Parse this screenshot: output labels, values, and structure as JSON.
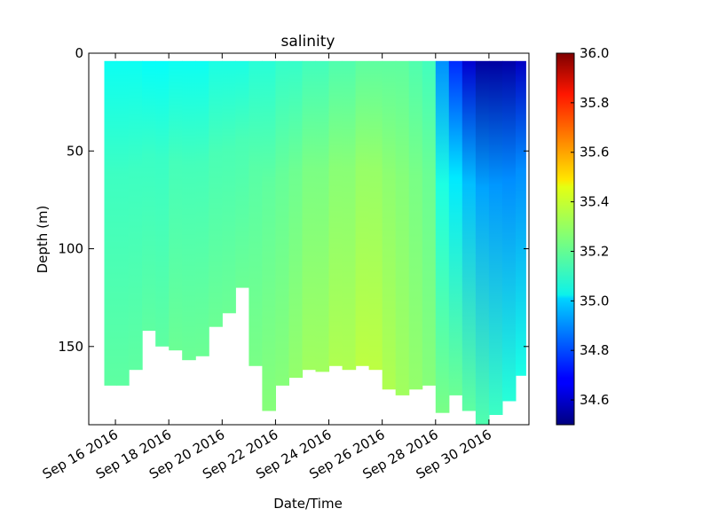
{
  "chart_data": {
    "type": "heatmap",
    "title": "salinity",
    "xlabel": "Date/Time",
    "ylabel": "Depth (m)",
    "x_ticks": [
      "Sep 16 2016",
      "Sep 18 2016",
      "Sep 20 2016",
      "Sep 22 2016",
      "Sep 24 2016",
      "Sep 26 2016",
      "Sep 28 2016",
      "Sep 30 2016"
    ],
    "xlim": [
      "2016-09-15",
      "2016-10-01 12:00"
    ],
    "y_ticks": [
      0,
      50,
      100,
      150
    ],
    "ylim": [
      190,
      0
    ],
    "y_inverted": true,
    "colorbar": {
      "colormap": "jet",
      "min": 34.5,
      "max": 36.0,
      "ticks": [
        "34.6",
        "34.8",
        "35.0",
        "35.2",
        "35.4",
        "35.6",
        "35.8",
        "36.0"
      ]
    },
    "profiles": [
      {
        "time": "2016-09-15 20:00",
        "max_depth": 170,
        "surface_salinity": 35.08,
        "deep_salinity": 35.2
      },
      {
        "time": "2016-09-16 06:00",
        "max_depth": 170,
        "surface_salinity": 35.08,
        "deep_salinity": 35.2
      },
      {
        "time": "2016-09-16 18:00",
        "max_depth": 162,
        "surface_salinity": 35.08,
        "deep_salinity": 35.2
      },
      {
        "time": "2016-09-17 06:00",
        "max_depth": 142,
        "surface_salinity": 35.07,
        "deep_salinity": 35.2
      },
      {
        "time": "2016-09-17 18:00",
        "max_depth": 150,
        "surface_salinity": 35.07,
        "deep_salinity": 35.2
      },
      {
        "time": "2016-09-18 06:00",
        "max_depth": 152,
        "surface_salinity": 35.08,
        "deep_salinity": 35.22
      },
      {
        "time": "2016-09-18 18:00",
        "max_depth": 157,
        "surface_salinity": 35.08,
        "deep_salinity": 35.22
      },
      {
        "time": "2016-09-19 06:00",
        "max_depth": 155,
        "surface_salinity": 35.08,
        "deep_salinity": 35.22
      },
      {
        "time": "2016-09-19 18:00",
        "max_depth": 140,
        "surface_salinity": 35.1,
        "deep_salinity": 35.22
      },
      {
        "time": "2016-09-20 06:00",
        "max_depth": 133,
        "surface_salinity": 35.1,
        "deep_salinity": 35.22
      },
      {
        "time": "2016-09-20 18:00",
        "max_depth": 120,
        "surface_salinity": 35.1,
        "deep_salinity": 35.22
      },
      {
        "time": "2016-09-21 06:00",
        "max_depth": 160,
        "surface_salinity": 35.12,
        "deep_salinity": 35.24
      },
      {
        "time": "2016-09-21 18:00",
        "max_depth": 183,
        "surface_salinity": 35.12,
        "deep_salinity": 35.26
      },
      {
        "time": "2016-09-22 06:00",
        "max_depth": 170,
        "surface_salinity": 35.14,
        "deep_salinity": 35.26
      },
      {
        "time": "2016-09-22 18:00",
        "max_depth": 166,
        "surface_salinity": 35.14,
        "deep_salinity": 35.28
      },
      {
        "time": "2016-09-23 06:00",
        "max_depth": 162,
        "surface_salinity": 35.16,
        "deep_salinity": 35.3
      },
      {
        "time": "2016-09-23 18:00",
        "max_depth": 163,
        "surface_salinity": 35.16,
        "deep_salinity": 35.3
      },
      {
        "time": "2016-09-24 06:00",
        "max_depth": 160,
        "surface_salinity": 35.18,
        "deep_salinity": 35.32
      },
      {
        "time": "2016-09-24 18:00",
        "max_depth": 162,
        "surface_salinity": 35.18,
        "deep_salinity": 35.32
      },
      {
        "time": "2016-09-25 06:00",
        "max_depth": 160,
        "surface_salinity": 35.2,
        "deep_salinity": 35.34
      },
      {
        "time": "2016-09-25 18:00",
        "max_depth": 162,
        "surface_salinity": 35.2,
        "deep_salinity": 35.34
      },
      {
        "time": "2016-09-26 06:00",
        "max_depth": 172,
        "surface_salinity": 35.2,
        "deep_salinity": 35.32
      },
      {
        "time": "2016-09-26 18:00",
        "max_depth": 175,
        "surface_salinity": 35.2,
        "deep_salinity": 35.3
      },
      {
        "time": "2016-09-27 06:00",
        "max_depth": 172,
        "surface_salinity": 35.18,
        "deep_salinity": 35.28
      },
      {
        "time": "2016-09-27 18:00",
        "max_depth": 170,
        "surface_salinity": 35.16,
        "deep_salinity": 35.26
      },
      {
        "time": "2016-09-28 06:00",
        "max_depth": 184,
        "surface_salinity": 34.9,
        "deep_salinity": 35.24
      },
      {
        "time": "2016-09-28 18:00",
        "max_depth": 175,
        "surface_salinity": 34.75,
        "deep_salinity": 35.22
      },
      {
        "time": "2016-09-29 06:00",
        "max_depth": 183,
        "surface_salinity": 34.62,
        "deep_salinity": 35.2
      },
      {
        "time": "2016-09-29 18:00",
        "max_depth": 190,
        "surface_salinity": 34.55,
        "deep_salinity": 35.18
      },
      {
        "time": "2016-09-30 06:00",
        "max_depth": 185,
        "surface_salinity": 34.55,
        "deep_salinity": 35.15
      },
      {
        "time": "2016-09-30 18:00",
        "max_depth": 178,
        "surface_salinity": 34.56,
        "deep_salinity": 35.12
      },
      {
        "time": "2016-10-01 06:00",
        "max_depth": 165,
        "surface_salinity": 34.6,
        "deep_salinity": 35.1
      }
    ]
  }
}
